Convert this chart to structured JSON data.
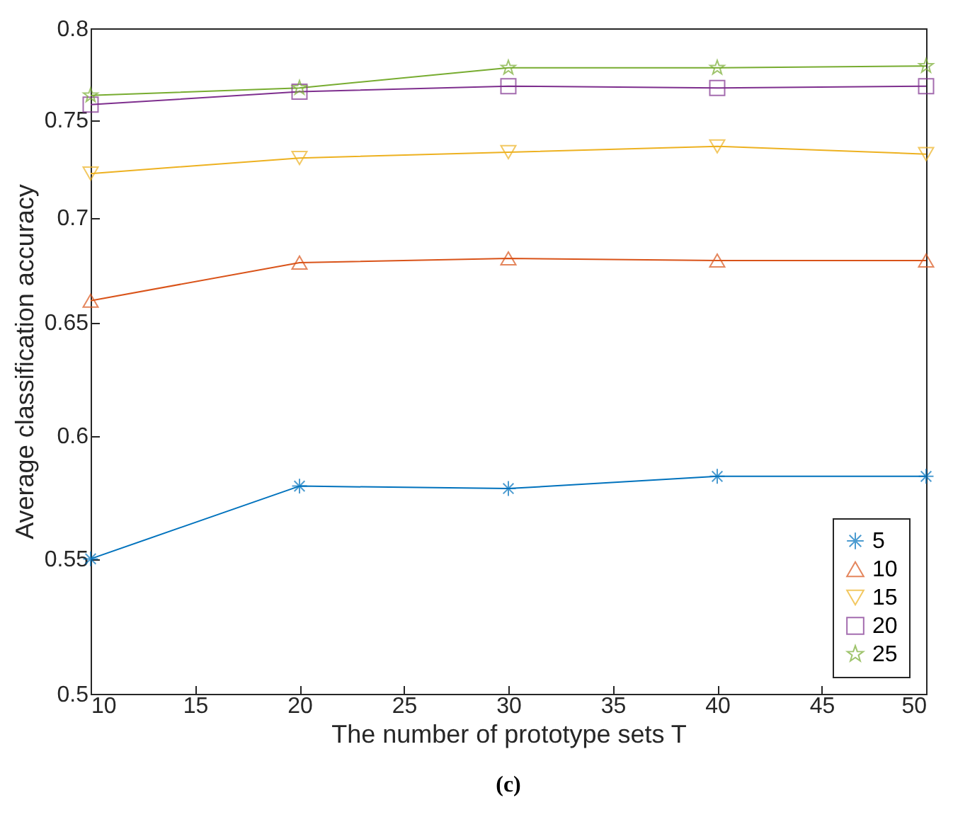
{
  "chart_data": {
    "type": "line",
    "xlabel": "The number of prototype sets T",
    "ylabel": "Average classification accuracy",
    "x": [
      10,
      20,
      30,
      40,
      50
    ],
    "xlim": [
      10,
      50
    ],
    "xticks": [
      10,
      15,
      20,
      25,
      30,
      35,
      40,
      45,
      50
    ],
    "ylim": [
      0.5,
      0.8
    ],
    "yticks": [
      0.5,
      0.55,
      0.6,
      0.65,
      0.7,
      0.75,
      0.8
    ],
    "log": "y",
    "grid": false,
    "legend": "bottom right",
    "line_style": "solid",
    "annotations": [
      "(c)"
    ],
    "series": [
      {
        "name": "5",
        "color": "#0072bd",
        "marker": "cross",
        "values": [
          0.55,
          0.579,
          0.578,
          0.583,
          0.583
        ]
      },
      {
        "name": "10",
        "color": "#d95319",
        "marker": "triangle",
        "values": [
          0.66,
          0.678,
          0.68,
          0.679,
          0.679
        ]
      },
      {
        "name": "15",
        "color": "#edb120",
        "marker": "triangle-down",
        "values": [
          0.722,
          0.73,
          0.733,
          0.736,
          0.732
        ]
      },
      {
        "name": "20",
        "color": "#7e2f8e",
        "marker": "square",
        "values": [
          0.758,
          0.765,
          0.768,
          0.767,
          0.768
        ]
      },
      {
        "name": "25",
        "color": "#77ac30",
        "marker": "star",
        "values": [
          0.763,
          0.767,
          0.778,
          0.778,
          0.779
        ]
      }
    ]
  }
}
